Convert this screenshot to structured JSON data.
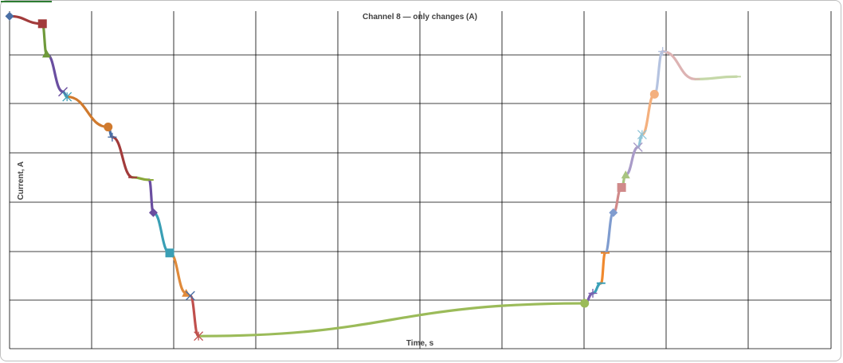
{
  "chart_data": {
    "type": "line",
    "title": "Channel 8 — only changes (A)",
    "xlabel": "Time, s",
    "ylabel": "Current, A",
    "grid": true,
    "legend": "none",
    "tick_labels_visible": false,
    "xlim": [
      0,
      10
    ],
    "ylim": [
      0,
      6.7
    ],
    "points": [
      {
        "x": 0.0,
        "y": 6.6,
        "marker": "diamond",
        "color": "#4a6fa5"
      },
      {
        "x": 0.4,
        "y": 6.45,
        "marker": "square",
        "color": "#a23b3b"
      },
      {
        "x": 0.45,
        "y": 5.85,
        "marker": "triangle",
        "color": "#6f9a3b"
      },
      {
        "x": 0.65,
        "y": 5.1,
        "marker": "x",
        "color": "#6a4ea0"
      },
      {
        "x": 0.7,
        "y": 5.0,
        "marker": "star",
        "color": "#3aa0b8"
      },
      {
        "x": 1.2,
        "y": 4.4,
        "marker": "circle",
        "color": "#d07a2e"
      },
      {
        "x": 1.25,
        "y": 4.2,
        "marker": "plus",
        "color": "#4a6fa5"
      },
      {
        "x": 1.5,
        "y": 3.4,
        "marker": "dash",
        "color": "#a23b3b"
      },
      {
        "x": 1.7,
        "y": 3.35,
        "marker": "dash",
        "color": "#8aa83b"
      },
      {
        "x": 1.75,
        "y": 2.7,
        "marker": "diamond",
        "color": "#6a4ea0"
      },
      {
        "x": 1.95,
        "y": 1.9,
        "marker": "square",
        "color": "#3a9fb5"
      },
      {
        "x": 2.15,
        "y": 1.1,
        "marker": "triangle",
        "color": "#e08a3a"
      },
      {
        "x": 2.2,
        "y": 1.05,
        "marker": "x",
        "color": "#4a6fa5"
      },
      {
        "x": 2.3,
        "y": 0.25,
        "marker": "star",
        "color": "#c0504d"
      },
      {
        "x": 7.0,
        "y": 0.9,
        "marker": "circle",
        "color": "#9bbb59"
      },
      {
        "x": 7.1,
        "y": 1.1,
        "marker": "plus",
        "color": "#7a5fb0"
      },
      {
        "x": 7.2,
        "y": 1.3,
        "marker": "dash",
        "color": "#3aa0b8"
      },
      {
        "x": 7.25,
        "y": 1.9,
        "marker": "dash",
        "color": "#f0892e"
      },
      {
        "x": 7.35,
        "y": 2.7,
        "marker": "diamond",
        "color": "#7f9ccf"
      },
      {
        "x": 7.45,
        "y": 3.2,
        "marker": "square",
        "color": "#d08a8a"
      },
      {
        "x": 7.5,
        "y": 3.45,
        "marker": "triangle",
        "color": "#a8c480"
      },
      {
        "x": 7.65,
        "y": 4.0,
        "marker": "x",
        "color": "#a99bc8"
      },
      {
        "x": 7.7,
        "y": 4.25,
        "marker": "star",
        "color": "#8fc5d8"
      },
      {
        "x": 7.85,
        "y": 5.05,
        "marker": "circle",
        "color": "#f4b07e"
      },
      {
        "x": 7.95,
        "y": 5.9,
        "marker": "plus",
        "color": "#b5c3e0"
      },
      {
        "x": 8.35,
        "y": 5.35,
        "marker": "dash",
        "color": "#ddb3b3"
      },
      {
        "x": 8.85,
        "y": 5.4,
        "marker": "dash",
        "color": "#c5d8a8"
      }
    ]
  }
}
